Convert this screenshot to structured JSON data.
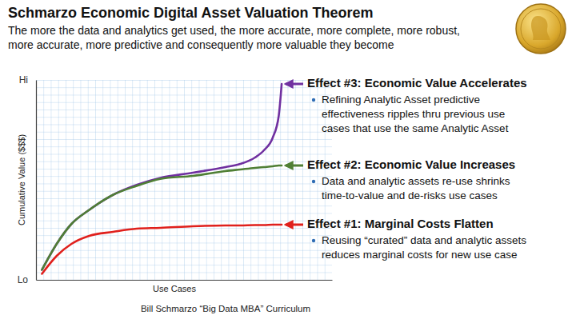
{
  "chart_data": {
    "type": "line",
    "title": "Schmarzo Economic Digital Asset Valuation Theorem",
    "subtitle": [
      "The more the data and analytics get used, the more accurate, more complete, more robust,",
      "more accurate, more predictive and consequently more valuable they become"
    ],
    "x_label": "Use Cases",
    "y_label": "Cumulative Value ($$$)",
    "x": [
      2,
      7,
      12,
      18,
      26,
      34,
      42,
      53,
      64,
      69,
      74,
      77,
      80,
      82,
      83
    ],
    "xlim": [
      0,
      100
    ],
    "ylim": [
      0,
      100
    ],
    "yticks": [
      {
        "value": 0,
        "label": "Lo"
      },
      {
        "value": 100,
        "label": "Hi"
      }
    ],
    "tick_labels": "y",
    "grid": true,
    "series": [
      {
        "name": "Effect #3: Economic Value Accelerates",
        "color": "#7030a0",
        "values": [
          5,
          18,
          28,
          35,
          42.5,
          47.5,
          51,
          53.6,
          56.4,
          58,
          61.2,
          64.8,
          71.2,
          82,
          98
        ],
        "note": [
          "Refining Analytic Asset predictive",
          "effectiveness ripples thru previous use",
          "cases that use the same Analytic Asset"
        ]
      },
      {
        "name": "Effect #2: Economic Value Increases",
        "color": "#4f7f35",
        "values": [
          5,
          18,
          28,
          35,
          42.5,
          47,
          50.5,
          52,
          54.4,
          55.2,
          56,
          56.4,
          56.8,
          57.2,
          57.2
        ],
        "note": [
          "Data and analytic assets re-use shrinks",
          "time-to-value and de-risks use cases"
        ]
      },
      {
        "name": "Effect #1: Marginal Costs Flatten",
        "color": "#e0201c",
        "values": [
          3,
          12,
          18,
          22,
          24,
          25.6,
          26,
          26.8,
          27.2,
          27.2,
          27.4,
          27.4,
          27.6,
          27.6,
          27.6
        ],
        "note": [
          "Reusing “curated” data and analytic assets",
          "reduces marginal costs for new use case"
        ]
      }
    ],
    "source": "Bill Schmarzo “Big Data MBA” Curriculum"
  }
}
